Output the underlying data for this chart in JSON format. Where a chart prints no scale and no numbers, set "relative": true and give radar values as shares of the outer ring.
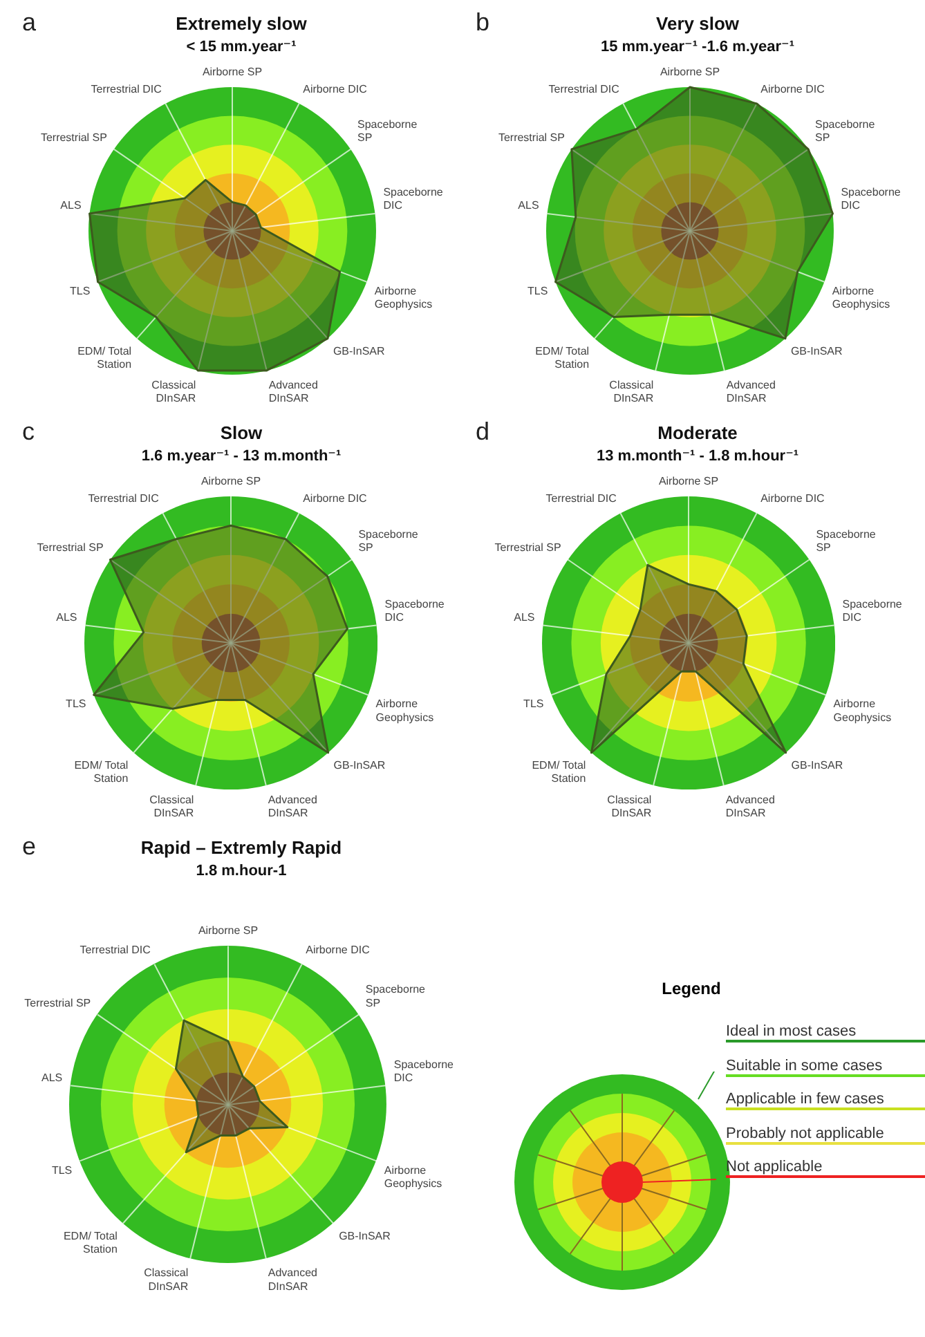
{
  "chart_data": [
    {
      "type": "radar",
      "title": "Extremely slow",
      "subtitle": "< 15 mm.year⁻¹",
      "annotations": [
        "a"
      ],
      "relative": true,
      "categories": [
        "Airborne SP",
        "Airborne DIC",
        "Spaceborne SP",
        "Spaceborne DIC",
        "Airborne Geophysics",
        "GB-InSAR",
        "Advanced DInSAR",
        "Classical DInSAR",
        "EDM/ Total Station",
        "TLS",
        "ALS",
        "Terrestrial SP",
        "Terrestrial DIC"
      ],
      "series": [
        {
          "color": "#3d5a1e",
          "values": [
            0.2,
            0.2,
            0.2,
            0.2,
            0.8,
            1,
            1,
            1,
            0.8,
            1,
            1,
            0.4,
            0.4
          ]
        }
      ],
      "marker": "none"
    },
    {
      "type": "radar",
      "title": "Very slow",
      "subtitle": "15 mm.year⁻¹ -1.6 m.year⁻¹",
      "annotations": [
        "b"
      ],
      "relative": true,
      "categories": [
        "Airborne SP",
        "Airborne DIC",
        "Spaceborne SP",
        "Spaceborne DIC",
        "Airborne Geophysics",
        "GB-InSAR",
        "Advanced DInSAR",
        "Classical DInSAR",
        "EDM/ Total Station",
        "TLS",
        "ALS",
        "Terrestrial SP",
        "Terrestrial DIC"
      ],
      "series": [
        {
          "color": "#3d5a1e",
          "values": [
            1,
            1,
            1,
            1,
            0.8,
            1,
            0.6,
            0.6,
            0.8,
            1,
            0.8,
            1,
            0.8
          ]
        }
      ],
      "marker": "none"
    },
    {
      "type": "radar",
      "title": "Slow",
      "subtitle": "1.6 m.year⁻¹ - 13 m.month⁻¹",
      "annotations": [
        "c"
      ],
      "relative": true,
      "categories": [
        "Airborne SP",
        "Airborne DIC",
        "Spaceborne SP",
        "Spaceborne DIC",
        "Airborne Geophysics",
        "GB-InSAR",
        "Advanced DInSAR",
        "Classical DInSAR",
        "EDM/ Total Station",
        "TLS",
        "ALS",
        "Terrestrial SP",
        "Terrestrial DIC"
      ],
      "series": [
        {
          "color": "#3d5a1e",
          "values": [
            0.8,
            0.8,
            0.8,
            0.8,
            0.6,
            1,
            0.4,
            0.4,
            0.6,
            1,
            0.6,
            1,
            0.8
          ]
        }
      ],
      "marker": "none"
    },
    {
      "type": "radar",
      "title": "Moderate",
      "subtitle": "13 m.month⁻¹ - 1.8 m.hour⁻¹",
      "annotations": [
        "d"
      ],
      "relative": true,
      "categories": [
        "Airborne SP",
        "Airborne DIC",
        "Spaceborne SP",
        "Spaceborne DIC",
        "Airborne Geophysics",
        "GB-InSAR",
        "Advanced DInSAR",
        "Classical DInSAR",
        "EDM/ Total Station",
        "TLS",
        "ALS",
        "Terrestrial SP",
        "Terrestrial DIC"
      ],
      "series": [
        {
          "color": "#3d5a1e",
          "values": [
            0.4,
            0.4,
            0.4,
            0.4,
            0.4,
            1,
            0.2,
            0.2,
            1,
            0.6,
            0.4,
            0.4,
            0.6
          ]
        }
      ],
      "marker": "none"
    },
    {
      "type": "radar",
      "title": "Rapid – Extremly Rapid",
      "subtitle": "1.8 m.hour-1",
      "annotations": [
        "e"
      ],
      "relative": true,
      "categories": [
        "Airborne SP",
        "Airborne DIC",
        "Spaceborne SP",
        "Spaceborne DIC",
        "Airborne Geophysics",
        "GB-InSAR",
        "Advanced DInSAR",
        "Classical DInSAR",
        "EDM/ Total Station",
        "TLS",
        "ALS",
        "Terrestrial SP",
        "Terrestrial DIC"
      ],
      "series": [
        {
          "color": "#3d5a1e",
          "values": [
            0.4,
            0.2,
            0.2,
            0.2,
            0.4,
            0.2,
            0.2,
            0.2,
            0.4,
            0.2,
            0.2,
            0.4,
            0.6
          ]
        }
      ],
      "marker": "none"
    },
    {
      "type": "other",
      "title": "Legend",
      "annotations": [
        "Ideal in most cases",
        "Suitable in some cases",
        "Applicable in few cases",
        "Probably not applicable",
        "Not applicable"
      ]
    }
  ]
}
